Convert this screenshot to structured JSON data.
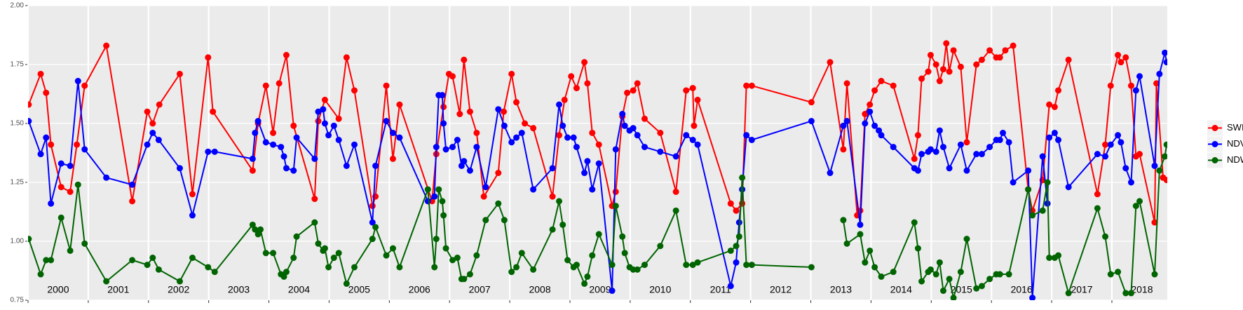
{
  "chart_data": {
    "type": "line",
    "xlim": [
      2000,
      2018.92
    ],
    "xticks": [
      2000,
      2001,
      2002,
      2003,
      2004,
      2005,
      2006,
      2007,
      2008,
      2009,
      2010,
      2011,
      2012,
      2013,
      2014,
      2015,
      2016,
      2017,
      2018
    ],
    "ylim": [
      0.75,
      2.0
    ],
    "yticks": [
      {
        "value": 0.75,
        "label": "0.75"
      },
      {
        "value": 1.0,
        "label": "1.00"
      },
      {
        "value": 1.25,
        "label": "1.25"
      },
      {
        "value": 1.5,
        "label": "1.50"
      },
      {
        "value": 1.75,
        "label": "1.75"
      },
      {
        "value": 2.0,
        "label": "2.00"
      }
    ],
    "grid": true,
    "legend": "right",
    "series": [
      {
        "name": "SWIR",
        "color": "#ff0000",
        "x": [
          2000.01,
          2000.21,
          2000.3,
          2000.38,
          2000.55,
          2000.7,
          2000.81,
          2000.94,
          2001.3,
          2001.73,
          2001.98,
          2002.07,
          2002.18,
          2002.52,
          2002.73,
          2002.99,
          2003.07,
          2003.73,
          2003.82,
          2003.95,
          2004.07,
          2004.17,
          2004.29,
          2004.41,
          2004.76,
          2004.82,
          2004.93,
          2005.16,
          2005.29,
          2005.42,
          2005.72,
          2005.77,
          2005.95,
          2006.06,
          2006.17,
          2006.71,
          2006.78,
          2006.9,
          2006.99,
          2007.05,
          2007.17,
          2007.24,
          2007.34,
          2007.45,
          2007.57,
          2007.81,
          2007.9,
          2008.03,
          2008.11,
          2008.25,
          2008.39,
          2008.71,
          2008.82,
          2008.91,
          2009.02,
          2009.11,
          2009.24,
          2009.29,
          2009.37,
          2009.48,
          2009.7,
          2009.76,
          2009.87,
          2009.95,
          2010.05,
          2010.12,
          2010.24,
          2010.5,
          2010.76,
          2010.93,
          2011.04,
          2011.06,
          2011.12,
          2011.67,
          2011.76,
          2011.86,
          2011.93,
          2012.02,
          2013.01,
          2013.32,
          2013.54,
          2013.6,
          2013.77,
          2013.82,
          2013.9,
          2013.98,
          2014.06,
          2014.17,
          2014.37,
          2014.72,
          2014.78,
          2014.84,
          2014.95,
          2014.99,
          2015.08,
          2015.14,
          2015.2,
          2015.25,
          2015.3,
          2015.37,
          2015.49,
          2015.59,
          2015.75,
          2015.84,
          2015.97,
          2016.08,
          2016.14,
          2016.23,
          2016.36,
          2016.61,
          2016.68,
          2016.85,
          2016.96,
          2017.05,
          2017.11,
          2017.28,
          2017.76,
          2017.89,
          2017.98,
          2018.1,
          2018.15,
          2018.23,
          2018.32,
          2018.4,
          2018.46,
          2018.71,
          2018.74,
          2018.85,
          2018.91
        ],
        "values": [
          1.58,
          1.71,
          1.63,
          1.41,
          1.23,
          1.21,
          1.41,
          1.66,
          1.83,
          1.17,
          1.55,
          1.5,
          1.58,
          1.71,
          1.2,
          1.78,
          1.55,
          1.3,
          1.5,
          1.66,
          1.46,
          1.67,
          1.79,
          1.49,
          1.18,
          1.51,
          1.6,
          1.52,
          1.78,
          1.64,
          1.15,
          1.19,
          1.66,
          1.35,
          1.58,
          1.17,
          1.37,
          1.57,
          1.71,
          1.7,
          1.54,
          1.77,
          1.55,
          1.46,
          1.19,
          1.29,
          1.55,
          1.71,
          1.59,
          1.5,
          1.48,
          1.19,
          1.45,
          1.6,
          1.7,
          1.65,
          1.76,
          1.67,
          1.46,
          1.41,
          1.15,
          1.21,
          1.53,
          1.63,
          1.64,
          1.67,
          1.52,
          1.46,
          1.21,
          1.64,
          1.65,
          1.49,
          1.6,
          1.16,
          1.13,
          1.16,
          1.66,
          1.66,
          1.59,
          1.76,
          1.39,
          1.67,
          1.11,
          1.13,
          1.54,
          1.58,
          1.64,
          1.68,
          1.66,
          1.35,
          1.45,
          1.69,
          1.72,
          1.79,
          1.75,
          1.68,
          1.73,
          1.84,
          1.72,
          1.81,
          1.74,
          1.42,
          1.75,
          1.77,
          1.81,
          1.78,
          1.78,
          1.81,
          1.83,
          1.22,
          1.13,
          1.26,
          1.58,
          1.57,
          1.64,
          1.77,
          1.2,
          1.41,
          1.66,
          1.79,
          1.76,
          1.78,
          1.66,
          1.36,
          1.37,
          1.08,
          1.67,
          1.27,
          1.26
        ]
      },
      {
        "name": "NDVI",
        "color": "#0000ff",
        "x": [
          2000.01,
          2000.21,
          2000.3,
          2000.38,
          2000.55,
          2000.7,
          2000.83,
          2000.94,
          2001.3,
          2001.73,
          2001.98,
          2002.07,
          2002.17,
          2002.52,
          2002.73,
          2002.99,
          2003.1,
          2003.73,
          2003.77,
          2003.82,
          2003.95,
          2004.07,
          2004.2,
          2004.25,
          2004.29,
          2004.41,
          2004.46,
          2004.76,
          2004.82,
          2004.9,
          2004.93,
          2004.99,
          2005.08,
          2005.16,
          2005.29,
          2005.42,
          2005.72,
          2005.77,
          2005.95,
          2006.06,
          2006.17,
          2006.64,
          2006.75,
          2006.78,
          2006.82,
          2006.88,
          2006.9,
          2006.94,
          2007.05,
          2007.13,
          2007.2,
          2007.24,
          2007.34,
          2007.45,
          2007.6,
          2007.81,
          2007.91,
          2008.03,
          2008.11,
          2008.2,
          2008.39,
          2008.71,
          2008.82,
          2008.88,
          2008.96,
          2009.06,
          2009.11,
          2009.24,
          2009.29,
          2009.37,
          2009.48,
          2009.7,
          2009.76,
          2009.87,
          2009.91,
          2009.99,
          2010.05,
          2010.12,
          2010.24,
          2010.5,
          2010.76,
          2010.93,
          2011.04,
          2011.12,
          2011.67,
          2011.76,
          2011.81,
          2011.86,
          2011.93,
          2012.02,
          2013.01,
          2013.32,
          2013.54,
          2013.6,
          2013.82,
          2013.9,
          2013.98,
          2014.06,
          2014.13,
          2014.17,
          2014.37,
          2014.72,
          2014.78,
          2014.84,
          2014.95,
          2014.99,
          2015.08,
          2015.14,
          2015.2,
          2015.3,
          2015.49,
          2015.59,
          2015.75,
          2015.84,
          2015.97,
          2016.08,
          2016.14,
          2016.19,
          2016.29,
          2016.36,
          2016.61,
          2016.68,
          2016.85,
          2016.93,
          2016.96,
          2017.05,
          2017.11,
          2017.28,
          2017.76,
          2017.89,
          2017.98,
          2018.1,
          2018.15,
          2018.23,
          2018.32,
          2018.4,
          2018.46,
          2018.71,
          2018.79,
          2018.88,
          2018.91
        ],
        "values": [
          1.51,
          1.37,
          1.44,
          1.16,
          1.33,
          1.32,
          1.68,
          1.39,
          1.27,
          1.24,
          1.41,
          1.46,
          1.43,
          1.31,
          1.11,
          1.38,
          1.38,
          1.35,
          1.46,
          1.51,
          1.42,
          1.41,
          1.4,
          1.36,
          1.31,
          1.3,
          1.44,
          1.35,
          1.55,
          1.56,
          1.5,
          1.45,
          1.49,
          1.43,
          1.32,
          1.41,
          1.08,
          1.32,
          1.51,
          1.46,
          1.44,
          1.17,
          1.19,
          1.4,
          1.62,
          1.62,
          1.5,
          1.39,
          1.4,
          1.43,
          1.32,
          1.34,
          1.3,
          1.4,
          1.23,
          1.56,
          1.49,
          1.42,
          1.44,
          1.46,
          1.22,
          1.31,
          1.58,
          1.49,
          1.44,
          1.44,
          1.4,
          1.29,
          1.34,
          1.22,
          1.33,
          0.79,
          1.39,
          1.54,
          1.49,
          1.47,
          1.48,
          1.45,
          1.4,
          1.38,
          1.36,
          1.45,
          1.43,
          1.41,
          0.81,
          0.91,
          1.08,
          1.22,
          1.45,
          1.43,
          1.51,
          1.29,
          1.49,
          1.51,
          1.07,
          1.5,
          1.55,
          1.49,
          1.47,
          1.45,
          1.4,
          1.31,
          1.3,
          1.37,
          1.38,
          1.39,
          1.38,
          1.47,
          1.4,
          1.31,
          1.41,
          1.3,
          1.37,
          1.37,
          1.4,
          1.43,
          1.43,
          1.46,
          1.42,
          1.25,
          1.3,
          0.76,
          1.36,
          1.16,
          1.44,
          1.46,
          1.43,
          1.23,
          1.37,
          1.36,
          1.41,
          1.45,
          1.42,
          1.31,
          1.25,
          1.64,
          1.7,
          1.32,
          1.71,
          1.8,
          1.76
        ]
      },
      {
        "name": "NDWI",
        "color": "#006400",
        "x": [
          2000.01,
          2000.21,
          2000.3,
          2000.38,
          2000.55,
          2000.7,
          2000.83,
          2000.94,
          2001.3,
          2001.73,
          2001.98,
          2002.07,
          2002.17,
          2002.52,
          2002.73,
          2002.99,
          2003.1,
          2003.73,
          2003.77,
          2003.82,
          2003.86,
          2003.95,
          2004.07,
          2004.2,
          2004.25,
          2004.29,
          2004.41,
          2004.46,
          2004.76,
          2004.82,
          2004.9,
          2004.93,
          2004.99,
          2005.08,
          2005.16,
          2005.29,
          2005.42,
          2005.72,
          2005.77,
          2005.95,
          2006.06,
          2006.17,
          2006.64,
          2006.75,
          2006.78,
          2006.82,
          2006.88,
          2006.9,
          2006.94,
          2007.05,
          2007.13,
          2007.2,
          2007.24,
          2007.34,
          2007.45,
          2007.6,
          2007.81,
          2007.91,
          2008.03,
          2008.11,
          2008.2,
          2008.39,
          2008.71,
          2008.82,
          2008.88,
          2008.96,
          2009.06,
          2009.11,
          2009.24,
          2009.29,
          2009.37,
          2009.48,
          2009.7,
          2009.76,
          2009.87,
          2009.91,
          2009.99,
          2010.05,
          2010.12,
          2010.24,
          2010.5,
          2010.76,
          2010.93,
          2011.04,
          2011.12,
          2011.67,
          2011.76,
          2011.81,
          2011.86,
          2011.93,
          2012.02,
          2013.01,
          2013.3,
          2013.54,
          2013.6,
          2013.82,
          2013.9,
          2013.98,
          2014.06,
          2014.17,
          2014.37,
          2014.72,
          2014.78,
          2014.84,
          2014.95,
          2014.99,
          2015.08,
          2015.14,
          2015.2,
          2015.3,
          2015.37,
          2015.49,
          2015.59,
          2015.75,
          2015.84,
          2015.97,
          2016.08,
          2016.14,
          2016.29,
          2016.61,
          2016.68,
          2016.85,
          2016.93,
          2016.96,
          2017.05,
          2017.11,
          2017.28,
          2017.76,
          2017.89,
          2017.98,
          2018.1,
          2018.23,
          2018.32,
          2018.4,
          2018.46,
          2018.71,
          2018.79,
          2018.88,
          2018.91
        ],
        "values": [
          1.01,
          0.86,
          0.92,
          0.92,
          1.1,
          0.96,
          1.24,
          0.99,
          0.83,
          0.92,
          0.9,
          0.93,
          0.88,
          0.83,
          0.93,
          0.89,
          0.87,
          1.07,
          1.05,
          1.03,
          1.05,
          0.95,
          0.95,
          0.86,
          0.85,
          0.87,
          0.93,
          1.02,
          1.08,
          0.99,
          0.96,
          0.97,
          0.89,
          0.93,
          0.95,
          0.82,
          0.89,
          1.01,
          1.06,
          0.94,
          0.97,
          0.89,
          1.22,
          0.89,
          1.01,
          1.22,
          1.17,
          1.11,
          0.97,
          0.92,
          0.93,
          0.84,
          0.84,
          0.86,
          0.94,
          1.09,
          1.16,
          1.09,
          0.87,
          0.89,
          0.95,
          0.88,
          1.05,
          1.17,
          1.07,
          0.92,
          0.89,
          0.9,
          0.82,
          0.85,
          0.94,
          1.03,
          0.9,
          1.15,
          1.02,
          0.95,
          0.89,
          0.88,
          0.88,
          0.9,
          0.98,
          1.13,
          0.9,
          0.9,
          0.91,
          0.96,
          0.98,
          1.02,
          1.27,
          0.9,
          0.9,
          0.89,
          null,
          1.09,
          0.99,
          1.03,
          0.91,
          0.96,
          0.89,
          0.85,
          0.87,
          1.08,
          0.97,
          0.83,
          0.87,
          0.88,
          0.86,
          0.91,
          0.79,
          0.84,
          0.76,
          0.87,
          1.01,
          0.8,
          0.81,
          0.84,
          0.86,
          0.86,
          0.86,
          1.22,
          1.11,
          1.13,
          1.25,
          0.93,
          0.93,
          0.94,
          0.78,
          1.14,
          1.02,
          0.86,
          0.87,
          0.78,
          0.78,
          1.15,
          1.17,
          0.86,
          1.3,
          1.36,
          1.41
        ]
      }
    ]
  }
}
